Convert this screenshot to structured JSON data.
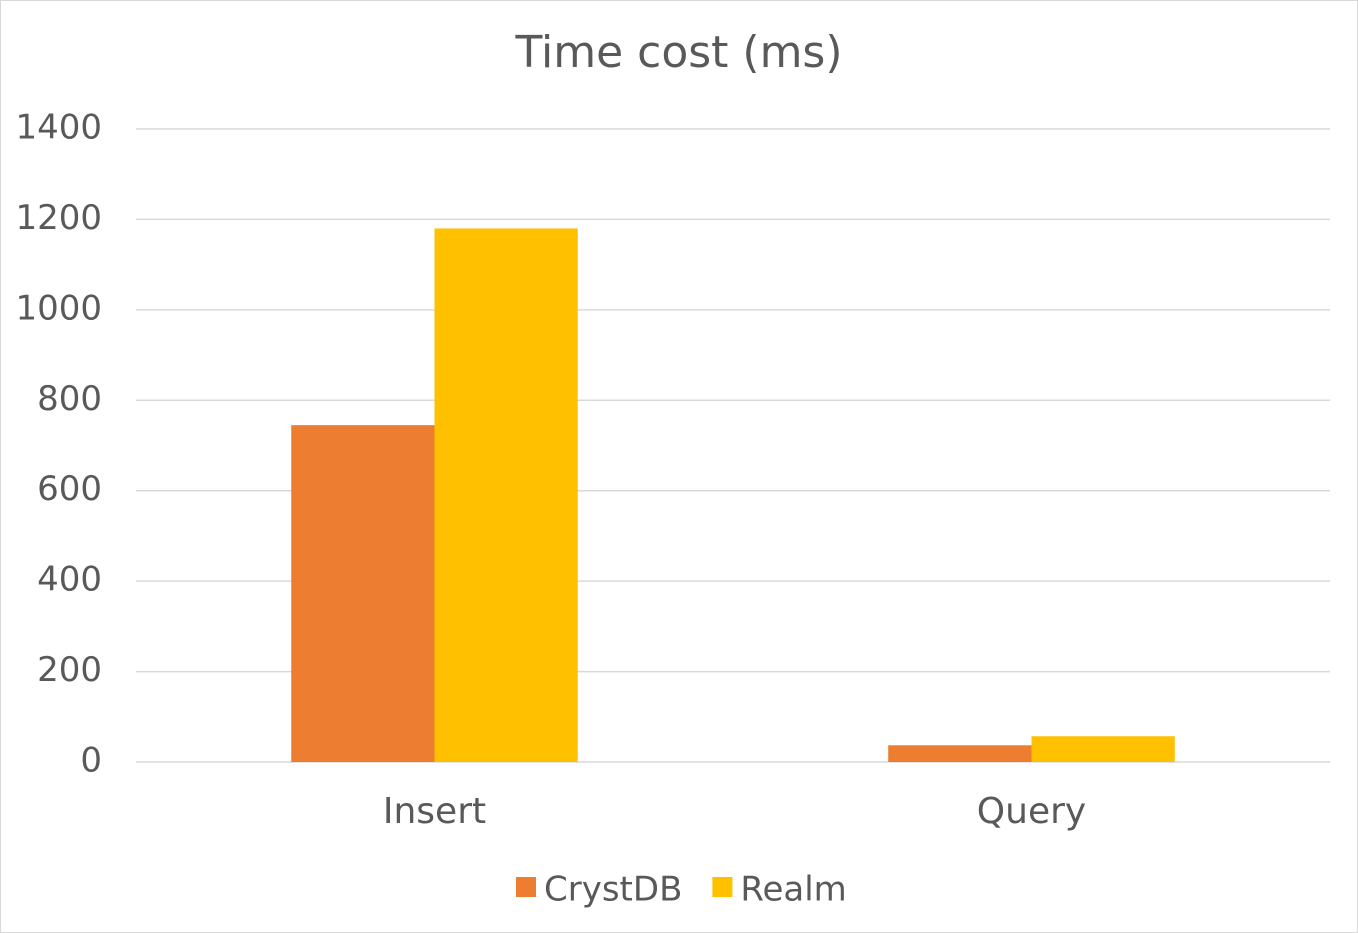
{
  "chart_data": {
    "type": "bar",
    "title": "Time cost (ms)",
    "categories": [
      "Insert",
      "Query"
    ],
    "series": [
      {
        "name": "CrystDB",
        "color": "#ed7d31",
        "values": [
          745,
          37
        ]
      },
      {
        "name": "Realm",
        "color": "#ffc000",
        "values": [
          1180,
          57
        ]
      }
    ],
    "ylim": [
      0,
      1400
    ],
    "yticks": [
      0,
      200,
      400,
      600,
      800,
      1000,
      1200,
      1400
    ],
    "grid": true,
    "legend": "bottom"
  }
}
